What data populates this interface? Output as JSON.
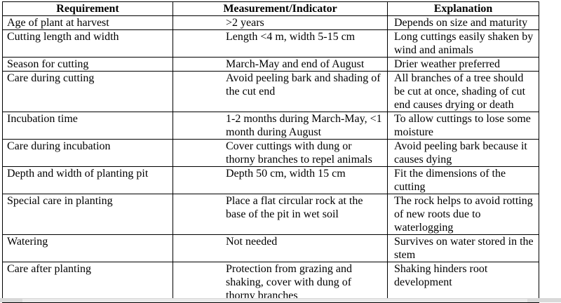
{
  "headers": [
    "Requirement",
    "Measurement/Indicator",
    "Explanation"
  ],
  "rows": [
    [
      "Age of plant at harvest",
      ">2 years",
      "Depends on size and maturity"
    ],
    [
      "Cutting length and width",
      "Length <4 m, width 5-15 cm",
      "Long cuttings easily shaken by wind and animals"
    ],
    [
      "Season for cutting",
      "March-May and end of August",
      "Drier weather preferred"
    ],
    [
      "Care during cutting",
      "Avoid peeling bark and shading of the cut end",
      "All branches of a tree should be cut at once, shading of cut end causes drying or death"
    ],
    [
      "Incubation time",
      "1-2 months during March-May, <1 month during August",
      "To allow cuttings to lose some moisture"
    ],
    [
      "Care during incubation",
      "Cover cuttings with dung or thorny branches to repel animals",
      "Avoid peeling bark because it causes dying"
    ],
    [
      "Depth and width of planting pit",
      "Depth 50 cm, width 15 cm",
      "Fit the dimensions of the cutting"
    ],
    [
      "Special care in planting",
      "Place a flat circular rock at the base of the pit in wet soil",
      "The rock helps to avoid rotting of new roots due to waterlogging"
    ],
    [
      "Watering",
      "Not needed",
      "Survives on water stored in the stem"
    ],
    [
      "Care after planting",
      "Protection from grazing and shaking, cover with dung of thorny branches",
      "Shaking hinders root development"
    ]
  ]
}
